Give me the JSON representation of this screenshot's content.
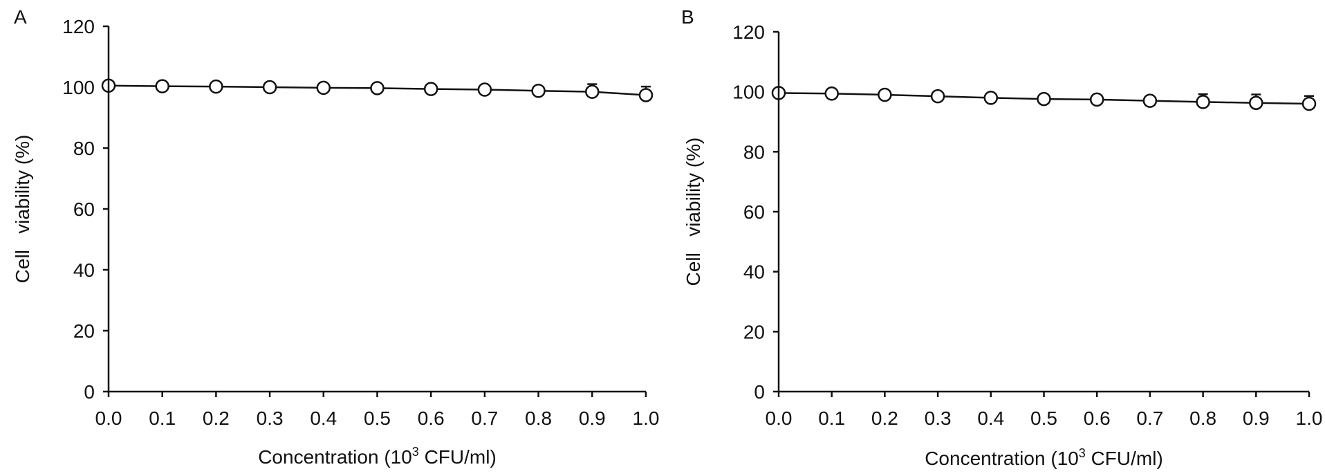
{
  "chart_data": [
    {
      "panel": "A",
      "type": "line",
      "xlabel_main": "Concentration (10",
      "xlabel_sup": "3",
      "xlabel_tail": " CFU/ml)",
      "ylabel": "Cell   viability (%)",
      "xlim": [
        0.0,
        1.0
      ],
      "ylim": [
        0,
        120
      ],
      "x_ticks": [
        "0.0",
        "0.1",
        "0.2",
        "0.3",
        "0.4",
        "0.5",
        "0.6",
        "0.7",
        "0.8",
        "0.9",
        "1.0"
      ],
      "y_ticks": [
        "0",
        "20",
        "40",
        "60",
        "80",
        "100",
        "120"
      ],
      "x": [
        0.0,
        0.1,
        0.2,
        0.3,
        0.4,
        0.5,
        0.6,
        0.7,
        0.8,
        0.9,
        1.0
      ],
      "values": [
        100.5,
        100.3,
        100.2,
        100.0,
        99.8,
        99.7,
        99.4,
        99.2,
        98.8,
        98.5,
        97.4
      ],
      "errors": [
        0.3,
        0.3,
        0.3,
        0.3,
        0.4,
        0.4,
        0.5,
        0.5,
        0.8,
        2.5,
        2.8
      ],
      "grid": false,
      "marker": "open-circle"
    },
    {
      "panel": "B",
      "type": "line",
      "xlabel_main": "Concentration (10",
      "xlabel_sup": "3",
      "xlabel_tail": " CFU/ml)",
      "ylabel": "Cell   viability (%)",
      "xlim": [
        0.0,
        1.0
      ],
      "ylim": [
        0,
        120
      ],
      "x_ticks": [
        "0.0",
        "0.1",
        "0.2",
        "0.3",
        "0.4",
        "0.5",
        "0.6",
        "0.7",
        "0.8",
        "0.9",
        "1.0"
      ],
      "y_ticks": [
        "0",
        "20",
        "40",
        "60",
        "80",
        "100",
        "120"
      ],
      "x": [
        0.0,
        0.1,
        0.2,
        0.3,
        0.4,
        0.5,
        0.6,
        0.7,
        0.8,
        0.9,
        1.0
      ],
      "values": [
        99.6,
        99.4,
        99.0,
        98.5,
        98.0,
        97.6,
        97.4,
        97.0,
        96.6,
        96.3,
        96.0
      ],
      "errors": [
        0.3,
        0.3,
        0.4,
        0.4,
        0.5,
        0.5,
        0.6,
        0.6,
        2.6,
        2.8,
        2.6
      ],
      "grid": false,
      "marker": "open-circle"
    }
  ]
}
